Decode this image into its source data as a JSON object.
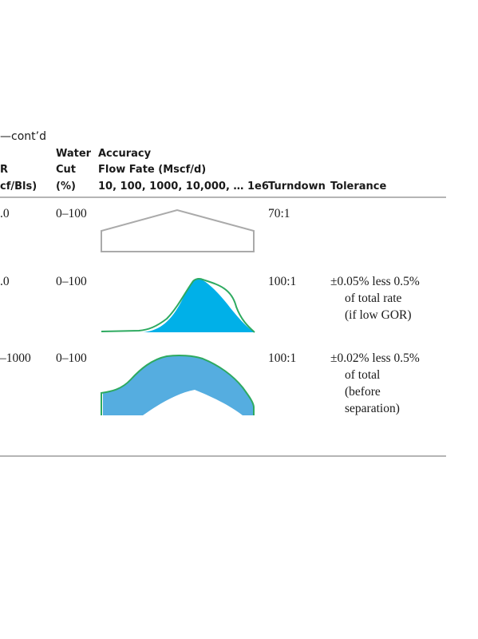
{
  "caption": "—cont’d",
  "headers": {
    "gor": [
      "R",
      "cf/Bls)"
    ],
    "water_cut": [
      "Water",
      "Cut",
      "(%)"
    ],
    "accuracy": [
      "Accuracy",
      "Flow Fate (Mscf/d)",
      "10, 100, 1000, 10,000, … 1e6"
    ],
    "turndown": "Turndown",
    "tolerance": "Tolerance"
  },
  "rows": [
    {
      "gor": ".0",
      "water_cut": "0–100",
      "turndown": "70:1",
      "tolerance": [],
      "profile_color": "#aaaaaa",
      "fill_color": "#ffffff"
    },
    {
      "gor": ".0",
      "water_cut": "0–100",
      "turndown": "100:1",
      "tolerance": [
        "±0.05% less 0.5%",
        "of total rate",
        "(if low GOR)"
      ],
      "profile_color": "#2eaa60",
      "fill_color": "#00b0e8"
    },
    {
      "gor": "–1000",
      "water_cut": "0–100",
      "turndown": "100:1",
      "tolerance": [
        "±0.02% less 0.5%",
        "of total",
        "(before",
        "separation)"
      ],
      "profile_color": "#2eaa60",
      "fill_color": "#55ade0"
    }
  ]
}
